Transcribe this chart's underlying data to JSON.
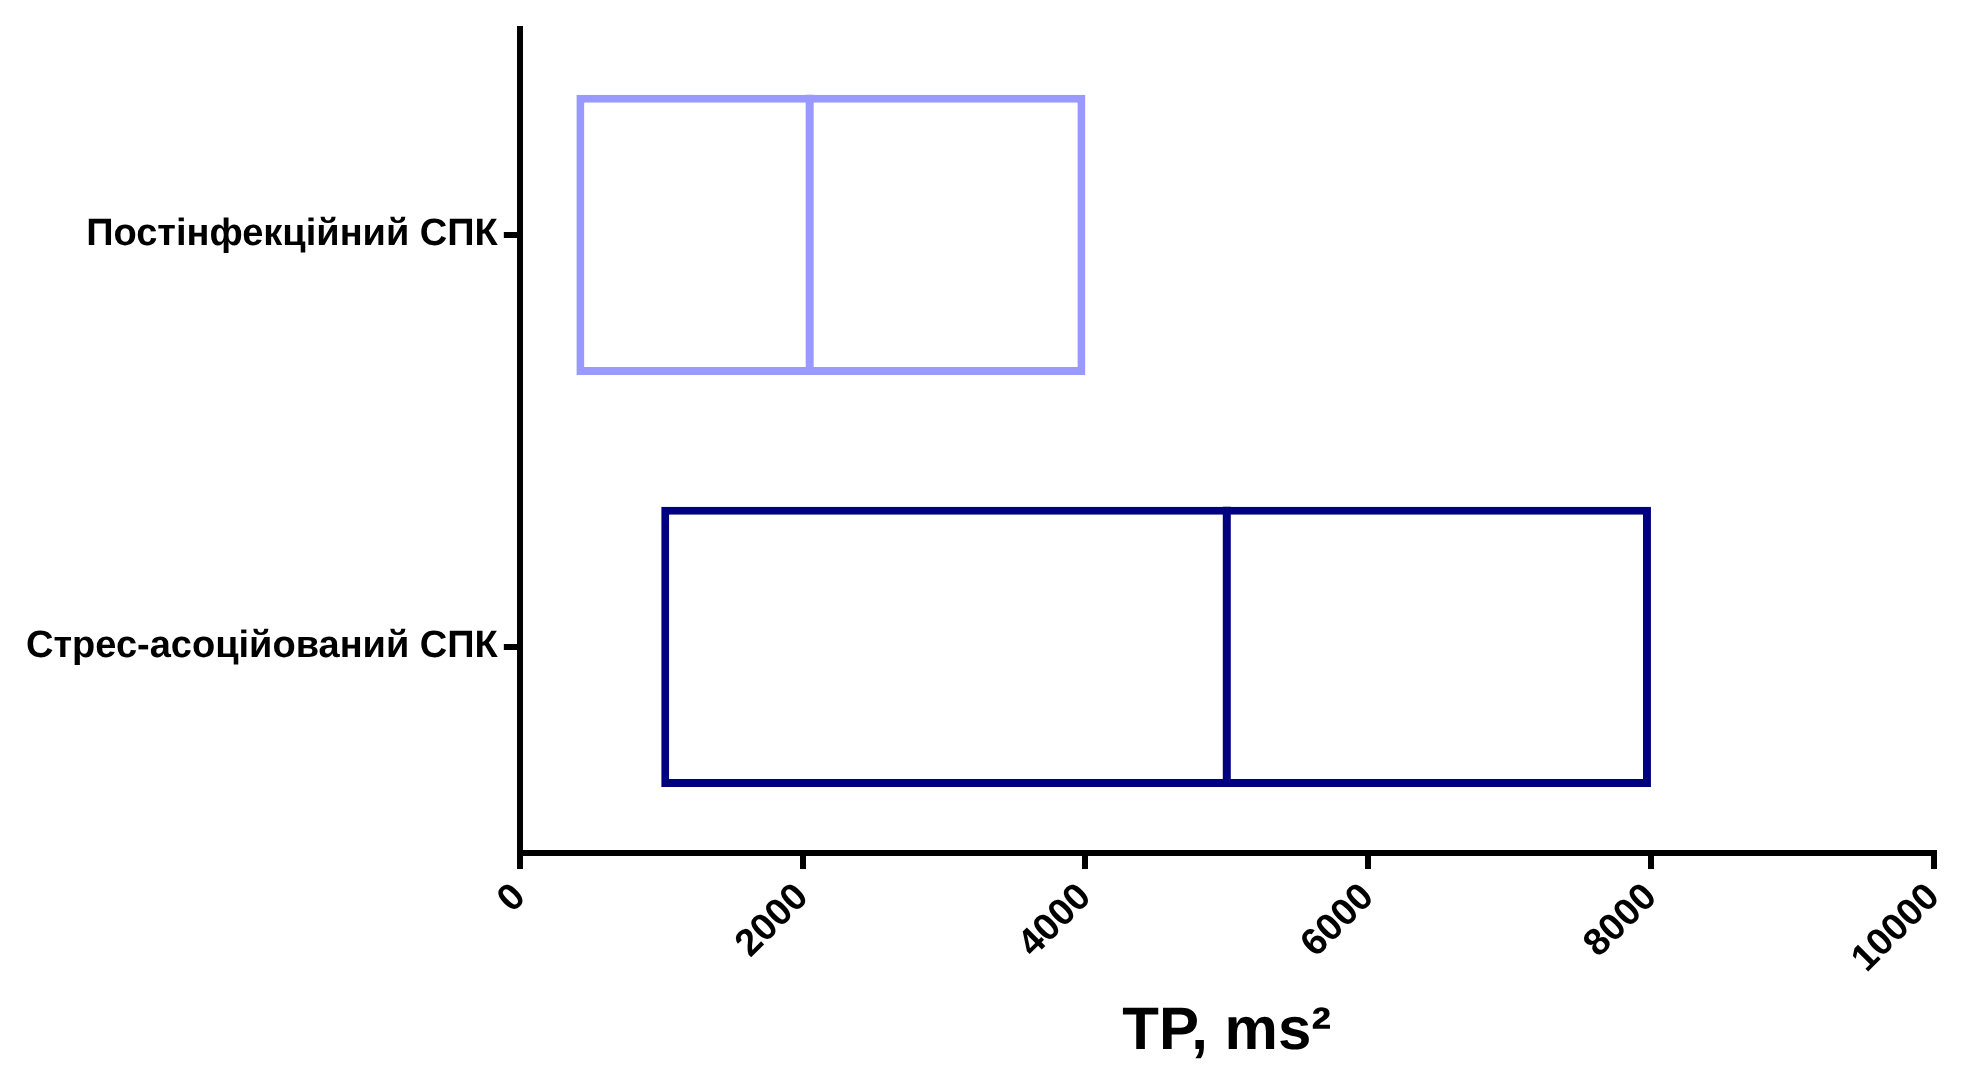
{
  "chart_data": {
    "type": "box",
    "orientation": "horizontal",
    "xlabel": "TP, ms²",
    "categories": [
      "Постінфекційний СПК",
      "Стрес-асоційований СПК"
    ],
    "boxes": [
      {
        "q1": 400,
        "median": 2050,
        "q3": 4000
      },
      {
        "q1": 1000,
        "median": 5000,
        "q3": 8000
      }
    ],
    "colors": [
      "#9999ff",
      "#000080"
    ],
    "xlim": [
      0,
      10000
    ],
    "xticks": [
      0,
      2000,
      4000,
      6000,
      8000,
      10000
    ],
    "grid": false,
    "legend": false
  }
}
